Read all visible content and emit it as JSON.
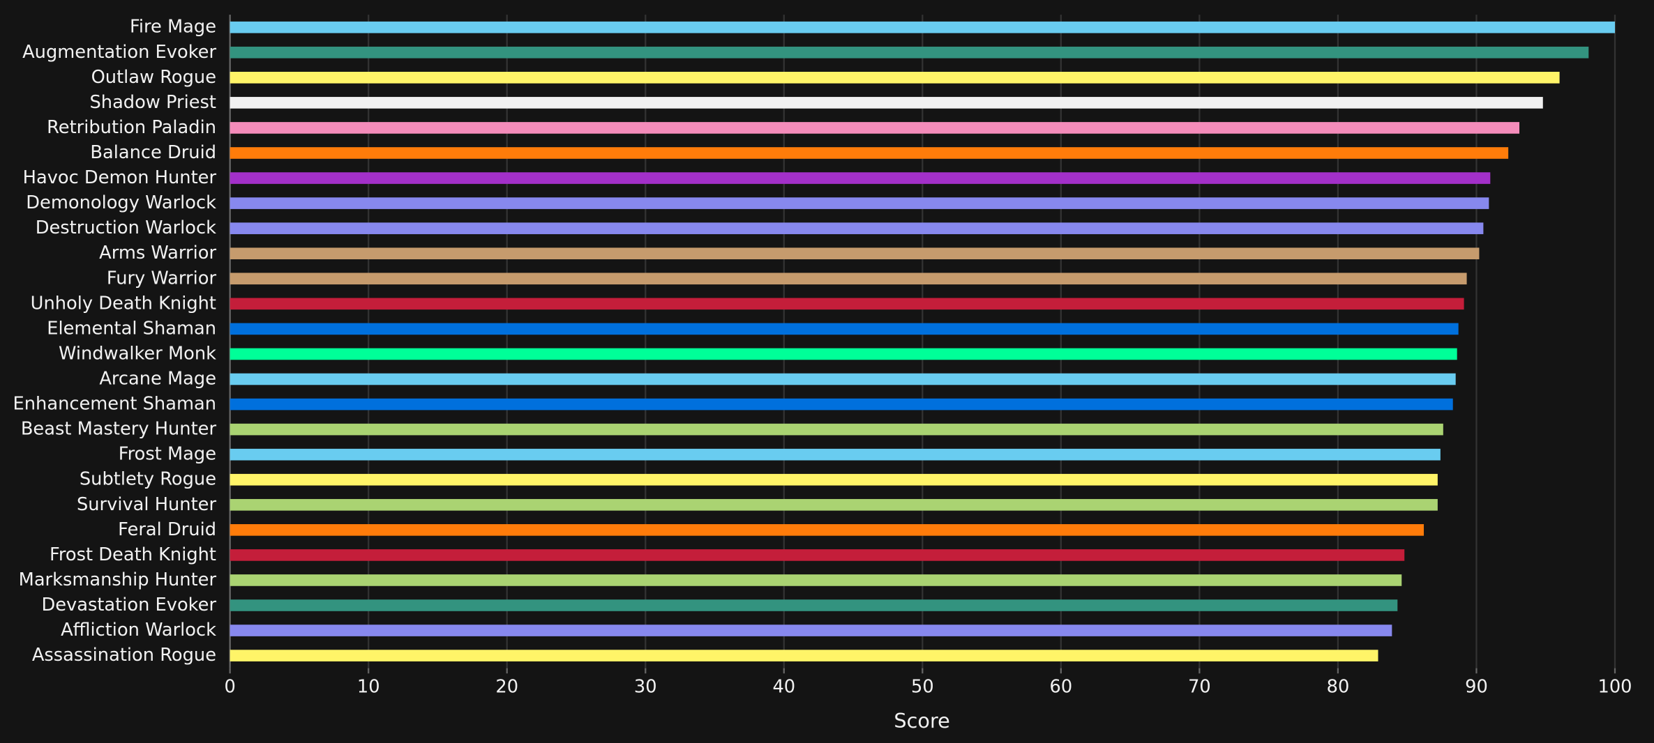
{
  "chart_data": {
    "type": "bar",
    "orientation": "horizontal",
    "categories": [
      "Fire Mage",
      "Augmentation Evoker",
      "Outlaw Rogue",
      "Shadow Priest",
      "Retribution Paladin",
      "Balance Druid",
      "Havoc Demon Hunter",
      "Demonology Warlock",
      "Destruction Warlock",
      "Arms Warrior",
      "Fury Warrior",
      "Unholy Death Knight",
      "Elemental Shaman",
      "Windwalker Monk",
      "Arcane Mage",
      "Enhancement Shaman",
      "Beast Mastery Hunter",
      "Frost Mage",
      "Subtlety Rogue",
      "Survival Hunter",
      "Feral Druid",
      "Frost Death Knight",
      "Marksmanship Hunter",
      "Devastation Evoker",
      "Affliction Warlock",
      "Assassination Rogue"
    ],
    "values": [
      100,
      98.1,
      96.0,
      94.8,
      93.1,
      92.3,
      91.0,
      90.9,
      90.5,
      90.2,
      89.3,
      89.1,
      88.7,
      88.6,
      88.5,
      88.3,
      87.6,
      87.4,
      87.2,
      87.2,
      86.2,
      84.8,
      84.6,
      84.3,
      83.9,
      82.9
    ],
    "colors": [
      "#69ccf0",
      "#33937f",
      "#fff468",
      "#f0f0f0",
      "#f48cba",
      "#ff7c0a",
      "#a330c9",
      "#8788ee",
      "#8788ee",
      "#c69b6d",
      "#c69b6d",
      "#c41e3a",
      "#0070dd",
      "#00ff98",
      "#69ccf0",
      "#0070dd",
      "#aad372",
      "#69ccf0",
      "#fff468",
      "#aad372",
      "#ff7c0a",
      "#c41e3a",
      "#aad372",
      "#33937f",
      "#8788ee",
      "#fff468"
    ],
    "xlabel": "Score",
    "xlim": [
      0,
      100
    ],
    "xticks": [
      0,
      10,
      20,
      30,
      40,
      50,
      60,
      70,
      80,
      90,
      100
    ],
    "grid": true
  }
}
